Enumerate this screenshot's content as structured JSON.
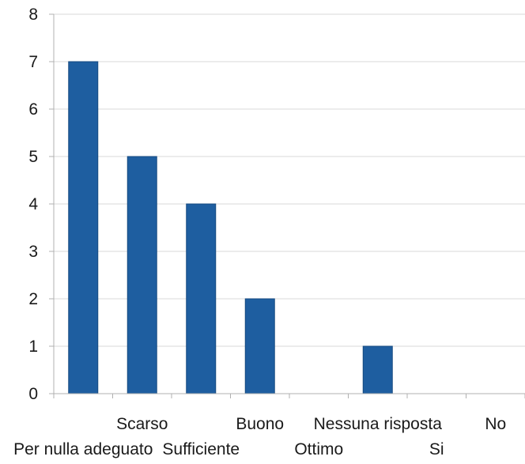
{
  "chart_data": {
    "type": "bar",
    "categories": [
      "Per nulla adeguato",
      "Scarso",
      "Sufficiente",
      "Buono",
      "Ottimo",
      "Nessuna risposta",
      "Si",
      "No"
    ],
    "values": [
      7,
      5,
      4,
      2,
      0,
      1,
      0,
      0
    ],
    "title": "",
    "xlabel": "",
    "ylabel": "",
    "ylim": [
      0,
      8
    ],
    "yticks": [
      0,
      1,
      2,
      3,
      4,
      5,
      6,
      7,
      8
    ],
    "grid": true,
    "legend": "none",
    "bar_color": "#1e5ea0",
    "bar_edge_color": "#164a80",
    "grid_color": "#d9d9d9",
    "axis_color": "#b0b0b0"
  }
}
